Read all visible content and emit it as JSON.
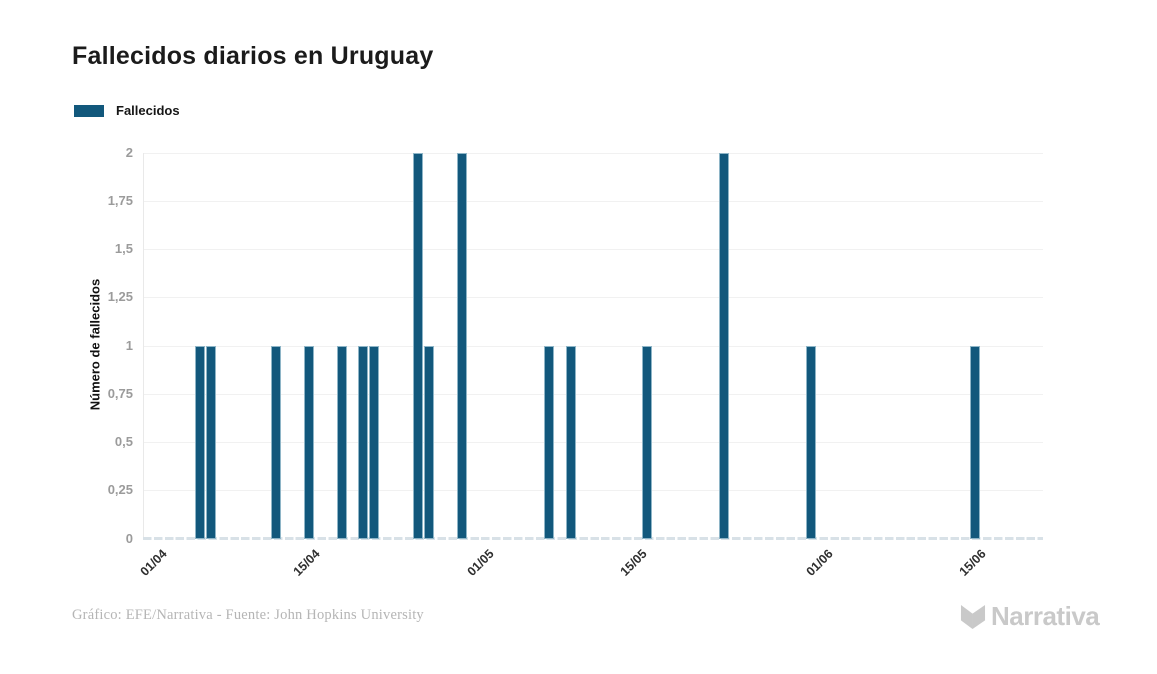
{
  "header": {
    "title": "Fallecidos diarios en Uruguay"
  },
  "legend": {
    "items": [
      {
        "label": "Fallecidos",
        "color": "#12587c"
      }
    ]
  },
  "chart_data": {
    "type": "bar",
    "title": "Fallecidos diarios en Uruguay",
    "xlabel": "",
    "ylabel": "Número de fallecidos",
    "ylim": [
      0,
      2
    ],
    "grid": "horizontal",
    "legend_position": "top-left",
    "date_format": "DD/MM",
    "yticks": [
      {
        "value": 0,
        "label": "0"
      },
      {
        "value": 0.25,
        "label": "0,25"
      },
      {
        "value": 0.5,
        "label": "0,5"
      },
      {
        "value": 0.75,
        "label": "0,75"
      },
      {
        "value": 1,
        "label": "1"
      },
      {
        "value": 1.25,
        "label": "1,25"
      },
      {
        "value": 1.5,
        "label": "1,5"
      },
      {
        "value": 1.75,
        "label": "1,75"
      },
      {
        "value": 2,
        "label": "2"
      }
    ],
    "xticks": [
      {
        "day": 0,
        "label": "01/04"
      },
      {
        "day": 14,
        "label": "15/04"
      },
      {
        "day": 30,
        "label": "01/05"
      },
      {
        "day": 44,
        "label": "15/05"
      },
      {
        "day": 61,
        "label": "01/06"
      },
      {
        "day": 75,
        "label": "15/06"
      }
    ],
    "series": [
      {
        "name": "Fallecidos",
        "color": "#12587c",
        "points": [
          {
            "date": "05/04",
            "day": 4,
            "value": 1
          },
          {
            "date": "06/04",
            "day": 5,
            "value": 1
          },
          {
            "date": "12/04",
            "day": 11,
            "value": 1
          },
          {
            "date": "15/04",
            "day": 14,
            "value": 1
          },
          {
            "date": "18/04",
            "day": 17,
            "value": 1
          },
          {
            "date": "20/04",
            "day": 19,
            "value": 1
          },
          {
            "date": "21/04",
            "day": 20,
            "value": 1
          },
          {
            "date": "25/04",
            "day": 24,
            "value": 2
          },
          {
            "date": "26/04",
            "day": 25,
            "value": 1
          },
          {
            "date": "29/04",
            "day": 28,
            "value": 2
          },
          {
            "date": "07/05",
            "day": 36,
            "value": 1
          },
          {
            "date": "09/05",
            "day": 38,
            "value": 1
          },
          {
            "date": "16/05",
            "day": 45,
            "value": 1
          },
          {
            "date": "23/05",
            "day": 52,
            "value": 2
          },
          {
            "date": "31/05",
            "day": 60,
            "value": 1
          },
          {
            "date": "15/06",
            "day": 75,
            "value": 1
          }
        ]
      }
    ]
  },
  "footer": {
    "credit": "Gráfico: EFE/Narrativa - Fuente: John Hopkins University",
    "brand": "Narrativa"
  }
}
